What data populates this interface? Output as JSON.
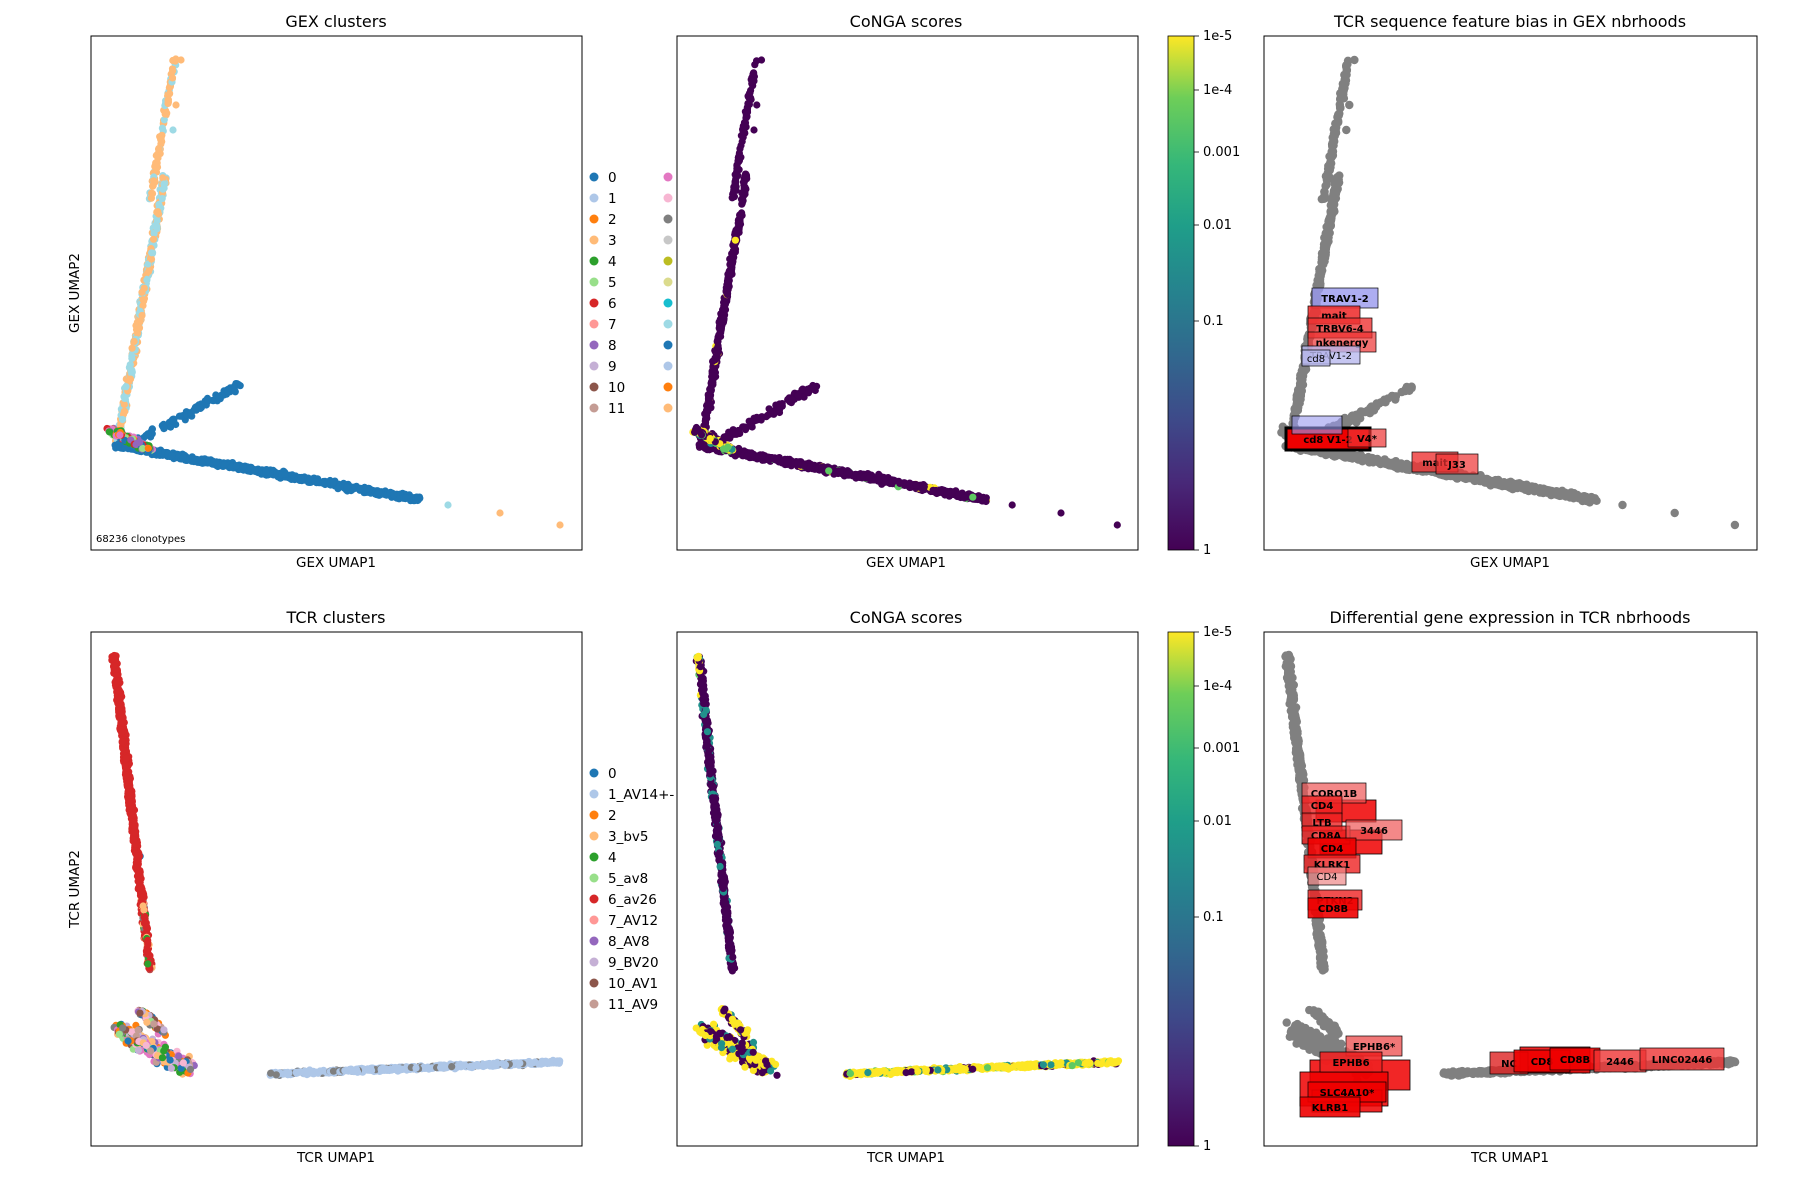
{
  "chart_data": [
    {
      "type": "scatter",
      "title": "GEX clusters",
      "xlabel": "GEX UMAP1",
      "ylabel": "GEX UMAP2",
      "annotation": "68236 clonotypes",
      "legend_labels": [
        "0",
        "1",
        "2",
        "3",
        "4",
        "5",
        "6",
        "7",
        "8",
        "9",
        "10",
        "11"
      ],
      "legend_colors": [
        "#1f77b4",
        "#aec7e8",
        "#ff7f0e",
        "#ffbb78",
        "#2ca02c",
        "#98df8a",
        "#d62728",
        "#ff9896",
        "#9467bd",
        "#c5b0d5",
        "#8c564b",
        "#c49c94"
      ],
      "legend_colors_col2": [
        "#e377c2",
        "#f7b6d2",
        "#7f7f7f",
        "#c7c7c7",
        "#bcbd22",
        "#dbdb8d",
        "#17becf",
        "#9edae5",
        "#1f77b4",
        "#aec7e8",
        "#ff7f0e",
        "#ffbb78"
      ]
    },
    {
      "type": "scatter",
      "title": "CoNGA scores",
      "xlabel": "GEX UMAP1",
      "colorbar_ticks": [
        "1e-5",
        "1e-4",
        "0.001",
        "0.01",
        "0.1",
        "1"
      ],
      "colormap": "viridis"
    },
    {
      "type": "scatter",
      "title": "TCR sequence feature bias in GEX nbrhoods",
      "xlabel": "GEX UMAP1",
      "labels": [
        "TRAV1-2",
        "mait",
        "TRBV6-4",
        "nkenergy",
        "TRAV1-2",
        "cd8",
        "cd8 V1-2",
        "V4*",
        "mait",
        "J33"
      ]
    },
    {
      "type": "scatter",
      "title": "TCR clusters",
      "xlabel": "TCR UMAP1",
      "ylabel": "TCR UMAP2",
      "legend_labels": [
        "0",
        "1_AV14+-",
        "2",
        "3_bv5",
        "4",
        "5_av8",
        "6_av26",
        "7_AV12",
        "8_AV8",
        "9_BV20",
        "10_AV1",
        "11_AV9"
      ],
      "legend_colors": [
        "#1f77b4",
        "#aec7e8",
        "#ff7f0e",
        "#ffbb78",
        "#2ca02c",
        "#98df8a",
        "#d62728",
        "#ff9896",
        "#9467bd",
        "#c5b0d5",
        "#8c564b",
        "#c49c94"
      ]
    },
    {
      "type": "scatter",
      "title": "CoNGA scores",
      "xlabel": "TCR UMAP1",
      "colorbar_ticks": [
        "1e-5",
        "1e-4",
        "0.001",
        "0.01",
        "0.1",
        "1"
      ],
      "colormap": "viridis"
    },
    {
      "type": "scatter",
      "title": "Differential gene expression in TCR nbrhoods",
      "xlabel": "TCR UMAP1",
      "labels": [
        "CORO1B",
        "CD4",
        "LTB",
        "CD8A",
        "3446",
        "CD4",
        "KLRK1",
        "CD4",
        "PTKN2",
        "CD8B",
        "EPHB6*",
        "EPHB6",
        "SLC4A10*",
        "KLRB1",
        "NC",
        "CD8",
        "CD8B",
        "2446",
        "LINC02446"
      ]
    }
  ]
}
